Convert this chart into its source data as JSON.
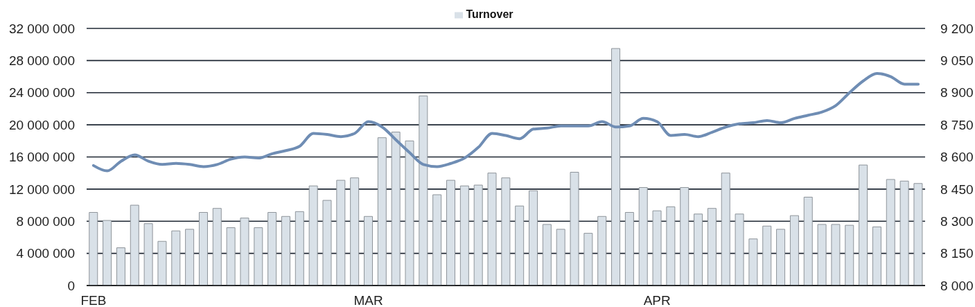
{
  "chart_data": {
    "type": "bar",
    "categories": [
      "FEB",
      null,
      null,
      null,
      null,
      null,
      null,
      null,
      null,
      null,
      null,
      null,
      null,
      null,
      null,
      null,
      null,
      null,
      null,
      null,
      "MAR",
      null,
      null,
      null,
      null,
      null,
      null,
      null,
      null,
      null,
      null,
      null,
      null,
      null,
      null,
      null,
      null,
      null,
      null,
      null,
      null,
      "APR",
      null,
      null,
      null,
      null,
      null,
      null,
      null,
      null,
      null,
      null,
      null,
      null,
      null,
      null,
      null,
      null,
      null,
      null,
      null
    ],
    "series": [
      {
        "name": "Turnover",
        "color": "#d9e1e8",
        "values": [
          9100000,
          8100000,
          4700000,
          10000000,
          7700000,
          5500000,
          6800000,
          7000000,
          9100000,
          9600000,
          7200000,
          8400000,
          7200000,
          9100000,
          8600000,
          9200000,
          12400000,
          10600000,
          13100000,
          13400000,
          8600000,
          18400000,
          19100000,
          18000000,
          23600000,
          11300000,
          13100000,
          12400000,
          12500000,
          14000000,
          13400000,
          9900000,
          11800000,
          7600000,
          7000000,
          14100000,
          6500000,
          8600000,
          29500000,
          9100000,
          12200000,
          9300000,
          9800000,
          12200000,
          8900000,
          9600000,
          14000000,
          8900000,
          5800000,
          7400000,
          7000000,
          8700000,
          11000000,
          7600000,
          7600000,
          7500000,
          15000000,
          7300000,
          13200000,
          13000000,
          12700000
        ]
      },
      {
        "type": "line",
        "axis": "y2",
        "color": "#6f8db4",
        "values": [
          8560,
          8535,
          8580,
          8610,
          8580,
          8565,
          8570,
          8565,
          8555,
          8565,
          8590,
          8600,
          8595,
          8615,
          8630,
          8650,
          8710,
          8705,
          8695,
          8710,
          8765,
          8740,
          8680,
          8620,
          8565,
          8555,
          8570,
          8595,
          8645,
          8710,
          8700,
          8685,
          8730,
          8735,
          8745,
          8745,
          8745,
          8765,
          8740,
          8745,
          8780,
          8765,
          8700,
          8705,
          8695,
          8715,
          8740,
          8755,
          8760,
          8770,
          8760,
          8780,
          8795,
          8810,
          8840,
          8900,
          8955,
          8990,
          8975,
          8940,
          8940
        ]
      }
    ],
    "ylim": [
      0,
      32000000
    ],
    "yticks": [
      0,
      {
        "value": 4000000,
        "label": "4 000 000"
      },
      {
        "value": 8000000,
        "label": "8 000 000"
      },
      {
        "value": 12000000,
        "label": "12 000 000"
      },
      {
        "value": 16000000,
        "label": "16 000 000"
      },
      {
        "value": 20000000,
        "label": "20 000 000"
      },
      {
        "value": 24000000,
        "label": "24 000 000"
      },
      {
        "value": 28000000,
        "label": "28 000 000"
      },
      {
        "value": 32000000,
        "label": "32 000 000"
      }
    ],
    "y2lim": [
      8000,
      9200
    ],
    "y2ticks": [
      {
        "value": 8000,
        "label": "8 000"
      },
      {
        "value": 8150,
        "label": "8 150"
      },
      {
        "value": 8300,
        "label": "8 300"
      },
      {
        "value": 8450,
        "label": "8 450"
      },
      {
        "value": 8600,
        "label": "8 600"
      },
      {
        "value": 8750,
        "label": "8 750"
      },
      {
        "value": 8900,
        "label": "8 900"
      },
      {
        "value": 9050,
        "label": "9 050"
      },
      {
        "value": 9200,
        "label": "9 200"
      }
    ],
    "grid": "y",
    "legend": "top",
    "marker": "none"
  }
}
